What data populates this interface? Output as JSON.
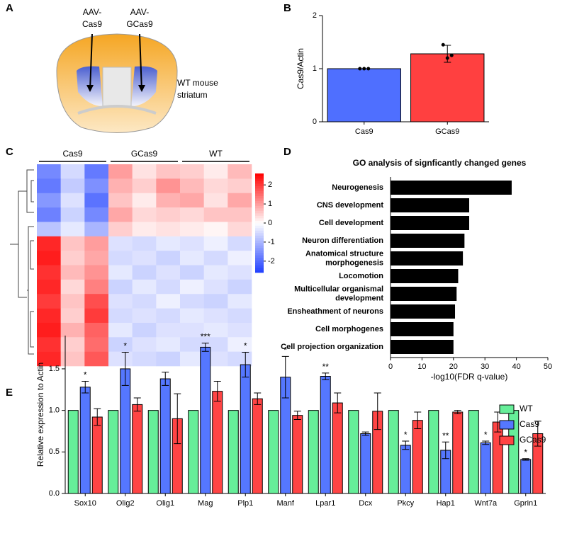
{
  "chart_data": [
    {
      "type": "diagram",
      "panel": "A",
      "labels": [
        [
          "AAV-",
          "Cas9"
        ],
        [
          "AAV-",
          "GCas9"
        ],
        [
          "WT mouse",
          "striatum"
        ]
      ]
    },
    {
      "type": "bar",
      "panel": "B",
      "ylabel": "Cas9/Actin",
      "categories": [
        "Cas9",
        "GCas9"
      ],
      "values": [
        1.0,
        1.28
      ],
      "errors": [
        0,
        0.16
      ],
      "points": [
        [
          1,
          1,
          1
        ],
        [
          1.45,
          1.2,
          1.25
        ]
      ],
      "colors": [
        "#4f6fff",
        "#ff4040"
      ],
      "ylim": [
        0,
        2
      ],
      "yticks": [
        0,
        1,
        2
      ]
    },
    {
      "type": "heatmap",
      "panel": "C",
      "groups": [
        "Cas9",
        "GCas9",
        "WT"
      ],
      "colormap": [
        "#1f3fff",
        "#ffffff",
        "#ff0000"
      ],
      "zlim": [
        -2.6,
        2.6
      ],
      "zticks": [
        2,
        1,
        0,
        -1,
        -2
      ],
      "values": [
        [
          -1.6,
          -0.5,
          -1.8,
          1.0,
          0.3,
          0.6,
          0.5,
          0.2,
          0.7
        ],
        [
          -1.8,
          -0.7,
          -1.5,
          0.8,
          0.5,
          1.1,
          0.7,
          0.4,
          0.5
        ],
        [
          -1.4,
          -0.4,
          -1.9,
          0.6,
          0.2,
          0.8,
          0.9,
          0.3,
          0.9
        ],
        [
          -1.7,
          -0.6,
          -1.6,
          0.9,
          0.4,
          0.5,
          0.4,
          0.6,
          0.6
        ],
        [
          -0.8,
          -0.3,
          -1.0,
          0.5,
          0.2,
          0.3,
          0.2,
          0.1,
          0.4
        ],
        [
          2.2,
          0.6,
          1.0,
          -0.4,
          -0.5,
          -0.3,
          -0.4,
          -0.2,
          -0.5
        ],
        [
          2.3,
          0.5,
          0.9,
          -0.5,
          -0.4,
          -0.6,
          -0.3,
          -0.5,
          -0.2
        ],
        [
          2.1,
          0.7,
          1.1,
          -0.3,
          -0.6,
          -0.4,
          -0.6,
          -0.3,
          -0.4
        ],
        [
          2.2,
          0.4,
          1.3,
          -0.6,
          -0.3,
          -0.5,
          -0.2,
          -0.4,
          -0.6
        ],
        [
          2.0,
          0.6,
          1.8,
          -0.4,
          -0.5,
          -0.2,
          -0.5,
          -0.6,
          -0.3
        ],
        [
          2.2,
          0.5,
          2.0,
          -0.5,
          -0.4,
          -0.5,
          -0.3,
          -0.4,
          -0.5
        ],
        [
          2.3,
          0.8,
          1.6,
          -0.3,
          -0.6,
          -0.4,
          -0.4,
          -0.3,
          -0.4
        ],
        [
          2.1,
          0.5,
          1.5,
          -0.6,
          -0.4,
          -0.3,
          -0.5,
          -0.5,
          -0.2
        ],
        [
          2.2,
          0.6,
          1.7,
          -0.4,
          -0.5,
          -0.6,
          -0.3,
          -0.4,
          -0.5
        ]
      ]
    },
    {
      "type": "hbar",
      "panel": "D",
      "title": "GO analysis of signficantly changed genes",
      "xlabel": "-log10(FDR q-value)",
      "categories": [
        [
          "Neurogenesis"
        ],
        [
          "CNS development"
        ],
        [
          "Cell development"
        ],
        [
          "Neuron differentiation"
        ],
        [
          "Anatomical structure",
          "morphogenesis"
        ],
        [
          "Locomotion"
        ],
        [
          "Multicellular organismal",
          "development"
        ],
        [
          "Ensheathment of neurons"
        ],
        [
          "Cell morphogenes"
        ],
        [
          "Cell projection organization"
        ]
      ],
      "values": [
        38.5,
        25,
        25,
        23.5,
        23,
        21.5,
        21,
        20.5,
        20,
        20
      ],
      "color": "#000000",
      "xlim": [
        0,
        50
      ],
      "xticks": [
        0,
        10,
        20,
        30,
        40,
        50
      ]
    },
    {
      "type": "bar",
      "panel": "E",
      "ylabel": "Relative expression to Actin",
      "categories": [
        "Sox10",
        "Olig2",
        "Olig1",
        "Mag",
        "Plp1",
        "Manf",
        "Lpar1",
        "Dcx",
        "Pkcy",
        "Hap1",
        "Wnt7a",
        "Gprin1"
      ],
      "series": [
        {
          "name": "WT",
          "color": "#66ee99",
          "values": [
            1,
            1,
            1,
            1,
            1,
            1,
            1,
            1,
            1,
            1,
            1,
            1
          ],
          "errors": [
            0,
            0,
            0,
            0,
            0,
            0,
            0,
            0,
            0,
            0,
            0,
            0
          ]
        },
        {
          "name": "Cas9",
          "color": "#5577ff",
          "values": [
            1.28,
            1.5,
            1.38,
            1.76,
            1.55,
            1.4,
            1.41,
            0.72,
            0.58,
            0.52,
            0.61,
            0.41
          ],
          "errors": [
            0.07,
            0.2,
            0.08,
            0.05,
            0.15,
            0.25,
            0.04,
            0.02,
            0.05,
            0.1,
            0.02,
            0.01
          ],
          "annotations": [
            "*",
            "*",
            null,
            "***",
            "*",
            "*",
            "**",
            null,
            "*",
            "**",
            "*",
            "*"
          ]
        },
        {
          "name": "GCas9",
          "color": "#ff4444",
          "values": [
            0.92,
            1.07,
            0.9,
            1.23,
            1.14,
            0.94,
            1.09,
            0.99,
            0.88,
            0.98,
            0.86,
            0.72
          ],
          "errors": [
            0.1,
            0.08,
            0.3,
            0.12,
            0.07,
            0.05,
            0.12,
            0.22,
            0.1,
            0.02,
            0.12,
            0.15
          ]
        }
      ],
      "ylim": [
        0,
        1.9
      ],
      "yticks": [
        {
          "value": 0,
          "label": "0.0"
        },
        0.5,
        {
          "value": 1,
          "label": "1.0"
        },
        1.5
      ]
    }
  ]
}
